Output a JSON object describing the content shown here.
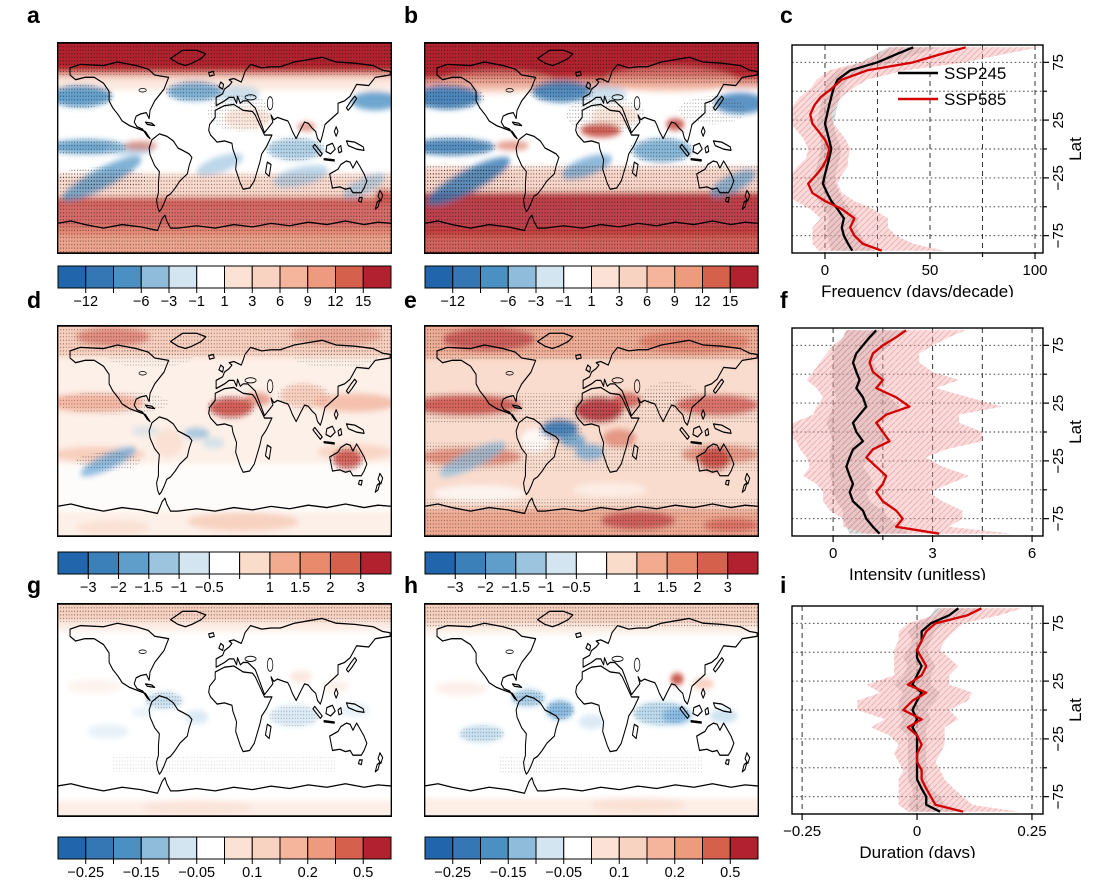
{
  "panels": {
    "a": "a",
    "b": "b",
    "c": "c",
    "d": "d",
    "e": "e",
    "f": "f",
    "g": "g",
    "h": "h",
    "i": "i"
  },
  "maps": {
    "a": {
      "colorbar": "row1"
    },
    "b": {
      "colorbar": "row1"
    },
    "d": {
      "colorbar": "row2"
    },
    "e": {
      "colorbar": "row2"
    },
    "g": {
      "colorbar": "row3"
    },
    "h": {
      "colorbar": "row3"
    }
  },
  "colorbars": {
    "row1": {
      "colors": [
        "#2166ac",
        "#3477b4",
        "#4a90c3",
        "#8fbcdb",
        "#d3e5f1",
        "#ffffff",
        "#fbe2d5",
        "#f8d3c2",
        "#f4b59c",
        "#ee9a7f",
        "#d5604c",
        "#b2212e"
      ],
      "tick_labels": [
        "−12",
        "",
        "−6",
        "−3",
        "−1",
        "1",
        "3",
        "6",
        "9",
        "12",
        "15"
      ]
    },
    "row2": {
      "colors": [
        "#2166ac",
        "#3b80b9",
        "#5f9dca",
        "#9cc4de",
        "#d3e5f1",
        "#ffffff",
        "#fadccb",
        "#f2ab8e",
        "#e98a6d",
        "#d5604c",
        "#b2212e"
      ],
      "tick_labels": [
        "−3",
        "−2",
        "−1.5",
        "−1",
        "−0.5",
        "",
        "1",
        "1.5",
        "2",
        "3"
      ]
    },
    "row3": {
      "colors": [
        "#2166ac",
        "#3477b4",
        "#4a90c3",
        "#8fbcdb",
        "#d3e5f1",
        "#ffffff",
        "#fbe2d5",
        "#f8d3c2",
        "#f4b59c",
        "#ee9a7f",
        "#d5604c",
        "#b2212e"
      ],
      "tick_labels": [
        "−0.25",
        "",
        "−0.15",
        "",
        "−0.05",
        "",
        "0.1",
        "",
        "0.2",
        "",
        "0.5"
      ]
    }
  },
  "legend": {
    "entries": [
      {
        "label": "SSP245",
        "color": "#000000"
      },
      {
        "label": "SSP585",
        "color": "#d40000"
      }
    ]
  },
  "chart_data": [
    {
      "id": "c",
      "type": "line",
      "xlabel": "Frequency (days/decade)",
      "ylabel": "Lat",
      "xlim": [
        -15.7,
        103.8
      ],
      "xticks": [
        0,
        25,
        50,
        75,
        100
      ],
      "xtick_labels": [
        "0",
        "",
        "50",
        "",
        "100"
      ],
      "lat_gridlines": [
        75,
        50,
        25,
        0,
        -25,
        -50,
        -75
      ],
      "lat_tick_labels": [
        "75",
        "",
        "25",
        "",
        "−25",
        "",
        "−75"
      ],
      "lats": [
        88,
        82,
        75,
        68,
        60,
        52,
        45,
        38,
        30,
        22,
        15,
        8,
        0,
        -8,
        -15,
        -22,
        -30,
        -38,
        -45,
        -52,
        -60,
        -68,
        -75,
        -82,
        -88
      ],
      "series": [
        {
          "name": "SSP245",
          "color": "#000000",
          "band_color": "#aaaaaa",
          "values": [
            42,
            34,
            25,
            12,
            6,
            4,
            3,
            2,
            1,
            0,
            1,
            2,
            3,
            2,
            1,
            0,
            -1,
            1,
            3,
            6,
            9,
            8,
            9,
            11,
            13
          ],
          "spread": [
            12,
            10,
            8,
            6,
            5,
            4,
            4,
            4,
            4,
            4,
            4,
            4,
            5,
            5,
            5,
            5,
            6,
            6,
            6,
            6,
            7,
            7,
            8,
            9,
            10
          ]
        },
        {
          "name": "SSP585",
          "color": "#d40000",
          "band_color": "#f4a0a0",
          "values": [
            67,
            55,
            42,
            20,
            8,
            3,
            -2,
            -5,
            -7,
            -6,
            -3,
            0,
            2,
            1,
            -1,
            -4,
            -8,
            -6,
            0,
            8,
            14,
            12,
            14,
            18,
            27
          ],
          "spread": [
            35,
            30,
            25,
            18,
            12,
            10,
            10,
            10,
            10,
            10,
            10,
            10,
            10,
            10,
            12,
            12,
            14,
            14,
            14,
            15,
            16,
            18,
            20,
            24,
            30
          ]
        }
      ],
      "legend": true
    },
    {
      "id": "f",
      "type": "line",
      "xlabel": "Intensity (unitless)",
      "ylabel": "Lat",
      "xlim": [
        -1.24,
        6.33
      ],
      "xticks": [
        0,
        1.5,
        3,
        4.5,
        6
      ],
      "xtick_labels": [
        "0",
        "",
        "3",
        "",
        "6"
      ],
      "lat_gridlines": [
        75,
        50,
        25,
        0,
        -25,
        -50,
        -75
      ],
      "lat_tick_labels": [
        "75",
        "",
        "25",
        "",
        "−25",
        "",
        "−75"
      ],
      "lats": [
        88,
        82,
        75,
        68,
        60,
        52,
        45,
        38,
        30,
        22,
        15,
        8,
        0,
        -8,
        -15,
        -22,
        -30,
        -38,
        -45,
        -52,
        -60,
        -68,
        -75,
        -82,
        -88
      ],
      "series": [
        {
          "name": "SSP245",
          "color": "#000000",
          "band_color": "#aaaaaa",
          "values": [
            1.3,
            1.1,
            0.9,
            0.7,
            0.6,
            0.7,
            0.8,
            0.7,
            0.9,
            1.0,
            0.8,
            0.6,
            0.7,
            0.9,
            0.6,
            0.5,
            0.4,
            0.5,
            0.6,
            0.5,
            0.6,
            0.9,
            1.0,
            1.2,
            1.4
          ],
          "spread": [
            0.9,
            0.8,
            0.8,
            0.7,
            0.6,
            0.7,
            0.8,
            0.7,
            0.8,
            1.0,
            0.9,
            0.8,
            0.8,
            0.9,
            0.7,
            0.6,
            0.5,
            0.6,
            0.6,
            0.5,
            0.5,
            0.6,
            0.7,
            0.8,
            0.9
          ]
        },
        {
          "name": "SSP585",
          "color": "#d40000",
          "band_color": "#f4a0a0",
          "values": [
            2.2,
            1.9,
            1.5,
            1.2,
            1.1,
            1.2,
            1.5,
            1.3,
            1.9,
            2.3,
            1.6,
            1.3,
            1.5,
            1.7,
            1.2,
            1.0,
            1.3,
            1.6,
            1.5,
            1.3,
            1.5,
            1.9,
            2.1,
            1.9,
            3.2
          ],
          "spread": [
            1.8,
            1.6,
            1.5,
            1.4,
            1.5,
            1.8,
            2.3,
            1.8,
            2.2,
            2.8,
            2.2,
            2.5,
            3.0,
            2.8,
            2.2,
            1.8,
            2.0,
            2.5,
            2.0,
            1.6,
            1.8,
            2.0,
            1.8,
            1.6,
            2.2
          ]
        }
      ],
      "legend": false
    },
    {
      "id": "i",
      "type": "line",
      "xlabel": "Duration (days)",
      "ylabel": "Lat",
      "xlim": [
        -0.272,
        0.274
      ],
      "xticks": [
        -0.25,
        0,
        0.25
      ],
      "xtick_labels": [
        "−0.25",
        "0",
        "0.25"
      ],
      "lat_gridlines": [
        75,
        50,
        25,
        0,
        -25,
        -50,
        -75
      ],
      "lat_tick_labels": [
        "75",
        "",
        "25",
        "",
        "−25",
        "",
        "−75"
      ],
      "lats": [
        88,
        82,
        75,
        68,
        60,
        52,
        45,
        38,
        30,
        22,
        15,
        8,
        0,
        -8,
        -15,
        -22,
        -30,
        -38,
        -45,
        -52,
        -60,
        -68,
        -75,
        -82,
        -88
      ],
      "series": [
        {
          "name": "SSP245",
          "color": "#000000",
          "band_color": "#aaaaaa",
          "values": [
            0.09,
            0.07,
            0.03,
            0.01,
            0.01,
            0.0,
            0.0,
            0.01,
            0.0,
            -0.01,
            0.01,
            0.0,
            -0.01,
            0.0,
            -0.01,
            0.0,
            0.0,
            0.0,
            0.0,
            0.0,
            0.0,
            0.01,
            0.02,
            0.02,
            0.05
          ],
          "spread": [
            0.05,
            0.04,
            0.03,
            0.03,
            0.02,
            0.02,
            0.03,
            0.03,
            0.03,
            0.04,
            0.04,
            0.04,
            0.03,
            0.03,
            0.03,
            0.02,
            0.02,
            0.02,
            0.02,
            0.02,
            0.02,
            0.02,
            0.03,
            0.04,
            0.06
          ]
        },
        {
          "name": "SSP585",
          "color": "#d40000",
          "band_color": "#f4a0a0",
          "values": [
            0.14,
            0.11,
            0.04,
            0.02,
            0.01,
            0.0,
            0.01,
            0.02,
            0.01,
            -0.02,
            0.02,
            -0.01,
            -0.03,
            0.01,
            -0.02,
            0.0,
            0.01,
            0.0,
            0.0,
            0.01,
            0.01,
            0.02,
            0.03,
            0.04,
            0.1
          ],
          "spread": [
            0.09,
            0.07,
            0.06,
            0.06,
            0.05,
            0.05,
            0.06,
            0.07,
            0.06,
            0.09,
            0.1,
            0.12,
            0.1,
            0.08,
            0.08,
            0.06,
            0.05,
            0.05,
            0.04,
            0.04,
            0.05,
            0.06,
            0.07,
            0.08,
            0.12
          ]
        }
      ],
      "legend": false
    }
  ]
}
